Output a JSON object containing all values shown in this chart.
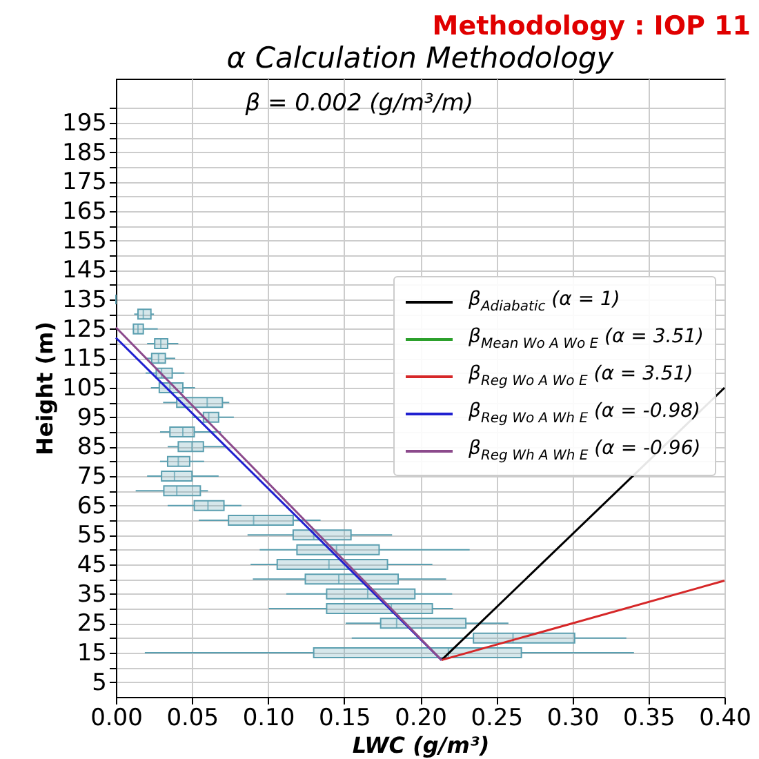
{
  "chart_data": {
    "type": "box",
    "orientation": "horizontal",
    "subtitle": "Methodology : IOP 11",
    "title": "α Calculation Methodology",
    "xlabel": "LWC (g/m³)",
    "ylabel": "Height (m)",
    "annotations": [
      "β = 0.002 (g/m³/m)"
    ],
    "xlim": [
      0,
      0.4
    ],
    "xticks": [
      {
        "value": 0,
        "label": "0.00"
      },
      0.05,
      {
        "value": 0.1,
        "label": "0.10"
      },
      0.15,
      {
        "value": 0.2,
        "label": "0.20"
      },
      0.25,
      {
        "value": 0.3,
        "label": "0.30"
      },
      0.35,
      {
        "value": 0.4,
        "label": "0.40"
      }
    ],
    "ylim": [
      0,
      210
    ],
    "yticks": [
      5,
      {
        "value": 10,
        "label": null
      },
      15,
      {
        "value": 20,
        "label": null
      },
      25,
      {
        "value": 30,
        "label": null
      },
      35,
      {
        "value": 40,
        "label": null
      },
      45,
      {
        "value": 50,
        "label": null
      },
      55,
      {
        "value": 60,
        "label": null
      },
      65,
      {
        "value": 70,
        "label": null
      },
      75,
      {
        "value": 80,
        "label": null
      },
      85,
      {
        "value": 90,
        "label": null
      },
      95,
      {
        "value": 100,
        "label": null
      },
      105,
      {
        "value": 110,
        "label": null
      },
      115,
      {
        "value": 120,
        "label": null
      },
      125,
      {
        "value": 130,
        "label": null
      },
      135,
      {
        "value": 140,
        "label": null
      },
      145,
      {
        "value": 150,
        "label": null
      },
      155,
      {
        "value": 160,
        "label": null
      },
      165,
      {
        "value": 170,
        "label": null
      },
      175,
      {
        "value": 180,
        "label": null
      },
      185,
      {
        "value": 190,
        "label": null
      },
      195,
      {
        "value": 200,
        "label": null
      }
    ],
    "grid": true,
    "legend": "right",
    "series": [
      {
        "type": "box",
        "color": "#5b9fb0",
        "x": [
          135,
          130,
          125,
          120,
          115,
          110,
          105,
          100,
          95,
          90,
          85,
          80,
          75,
          70,
          65,
          60,
          55,
          50,
          45,
          40,
          35,
          30,
          25,
          20,
          15
        ],
        "boxes": [
          {
            "low": 0,
            "q1": 0,
            "median": 0,
            "q3": 0,
            "high": 0
          },
          {
            "low": 0.012,
            "q1": 0.0145,
            "median": 0.018,
            "q3": 0.023,
            "high": 0.025
          },
          {
            "low": 0.011,
            "q1": 0.0115,
            "median": 0.0145,
            "q3": 0.018,
            "high": 0.0275
          },
          {
            "low": 0.0205,
            "q1": 0.0255,
            "median": 0.0295,
            "q3": 0.034,
            "high": 0.041
          },
          {
            "low": 0.019,
            "q1": 0.0235,
            "median": 0.028,
            "q3": 0.0325,
            "high": 0.039
          },
          {
            "low": 0.0195,
            "q1": 0.0265,
            "median": 0.03,
            "q3": 0.037,
            "high": 0.045
          },
          {
            "low": 0.023,
            "q1": 0.0285,
            "median": 0.0355,
            "q3": 0.044,
            "high": 0.052
          },
          {
            "low": 0.031,
            "q1": 0.04,
            "median": 0.06,
            "q3": 0.07,
            "high": 0.0745
          },
          {
            "low": 0.05,
            "q1": 0.0575,
            "median": 0.061,
            "q3": 0.0675,
            "high": 0.0775
          },
          {
            "low": 0.029,
            "q1": 0.0355,
            "median": 0.044,
            "q3": 0.0515,
            "high": 0.069
          },
          {
            "low": 0.034,
            "q1": 0.041,
            "median": 0.05,
            "q3": 0.0575,
            "high": 0.072
          },
          {
            "low": 0.029,
            "q1": 0.034,
            "median": 0.041,
            "q3": 0.0485,
            "high": 0.058
          },
          {
            "low": 0.0205,
            "q1": 0.03,
            "median": 0.0385,
            "q3": 0.05,
            "high": 0.0675
          },
          {
            "low": 0.013,
            "q1": 0.0315,
            "median": 0.04,
            "q3": 0.0555,
            "high": 0.0605
          },
          {
            "low": 0.034,
            "q1": 0.0515,
            "median": 0.0605,
            "q3": 0.071,
            "high": 0.0825
          },
          {
            "low": 0.0545,
            "q1": 0.074,
            "median": 0.0905,
            "q3": 0.1165,
            "high": 0.1345
          },
          {
            "low": 0.0865,
            "q1": 0.1165,
            "median": 0.13,
            "q3": 0.1545,
            "high": 0.1815
          },
          {
            "low": 0.0945,
            "q1": 0.119,
            "median": 0.145,
            "q3": 0.173,
            "high": 0.2325
          },
          {
            "low": 0.0885,
            "q1": 0.106,
            "median": 0.14,
            "q3": 0.1785,
            "high": 0.208
          },
          {
            "low": 0.09,
            "q1": 0.1245,
            "median": 0.1465,
            "q3": 0.1855,
            "high": 0.217
          },
          {
            "low": 0.112,
            "q1": 0.1385,
            "median": 0.1655,
            "q3": 0.1965,
            "high": 0.221
          },
          {
            "low": 0.1005,
            "q1": 0.1385,
            "median": 0.181,
            "q3": 0.208,
            "high": 0.2215
          },
          {
            "low": 0.151,
            "q1": 0.174,
            "median": 0.1845,
            "q3": 0.23,
            "high": 0.258
          },
          {
            "low": 0.155,
            "q1": 0.235,
            "median": 0.261,
            "q3": 0.3015,
            "high": 0.3355
          },
          {
            "low": 0.019,
            "q1": 0.13,
            "median": 0.2185,
            "q3": 0.2665,
            "high": 0.3405
          }
        ]
      },
      {
        "type": "line",
        "name": "β$_{Adiabatic}$ (α = 1)",
        "color": "#000000",
        "x": [
          12.5,
          105
        ],
        "values": [
          0.214,
          0.4
        ]
      },
      {
        "type": "line",
        "name": "β$_{Mean Wo A Wo E}$ (α = 3.51)",
        "color": "#2ca02c",
        "x": [
          null,
          null
        ],
        "values": [
          null,
          null
        ]
      },
      {
        "type": "line",
        "name": "β$_{Reg Wo A Wo E}$ (α = 3.51)",
        "color": "#d62728",
        "x": [
          12.5,
          39.5
        ],
        "values": [
          0.214,
          0.4
        ]
      },
      {
        "type": "line",
        "name": "β$_{Reg Wo A Wh E}$ (α = -0.98)",
        "color": "#2020d0",
        "x": [
          122,
          12.5
        ],
        "values": [
          0,
          0.214
        ]
      },
      {
        "type": "line",
        "name": "β$_{Reg Wh A Wh E}$ (α = -0.96)",
        "color": "#8c4a8c",
        "x": [
          125.5,
          12.5
        ],
        "values": [
          0,
          0.214
        ]
      }
    ]
  }
}
